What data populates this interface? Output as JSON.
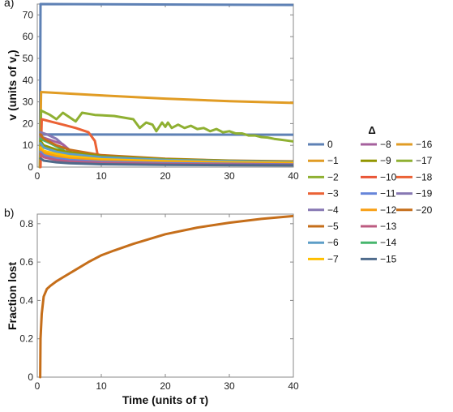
{
  "chart_data": [
    {
      "panel_label": "a)",
      "type": "line",
      "xlabel": "",
      "ylabel": "v (units of v",
      "ylabel_sub": "r",
      "ylabel_close": ")",
      "xlim": [
        0,
        40
      ],
      "ylim": [
        0,
        75
      ],
      "xticks": [
        0,
        10,
        20,
        30,
        40
      ],
      "yticks": [
        0,
        10,
        20,
        30,
        40,
        50,
        60,
        70
      ],
      "grid": false,
      "legend": {
        "title": "Δ",
        "placement": "right",
        "entries": [
          {
            "label": "0",
            "color": "#5e81b5"
          },
          {
            "label": "−1",
            "color": "#e19c24"
          },
          {
            "label": "−2",
            "color": "#8fb032"
          },
          {
            "label": "−3",
            "color": "#eb6235"
          },
          {
            "label": "−4",
            "color": "#8778b3"
          },
          {
            "label": "−5",
            "color": "#c56e1a"
          },
          {
            "label": "−6",
            "color": "#5d9ec7"
          },
          {
            "label": "−7",
            "color": "#ffbf00"
          },
          {
            "label": "−8",
            "color": "#a5609d"
          },
          {
            "label": "−9",
            "color": "#929600"
          },
          {
            "label": "−10",
            "color": "#e95536"
          },
          {
            "label": "−11",
            "color": "#6685d9"
          },
          {
            "label": "−12",
            "color": "#f89f13"
          },
          {
            "label": "−13",
            "color": "#bc5b80"
          },
          {
            "label": "−14",
            "color": "#47b66d"
          },
          {
            "label": "−15",
            "color": "#4f6b8c"
          },
          {
            "label": "−16",
            "color": "#e19c24"
          },
          {
            "label": "−17",
            "color": "#8fb032"
          },
          {
            "label": "−18",
            "color": "#eb6235"
          },
          {
            "label": "−19",
            "color": "#8778b3"
          },
          {
            "label": "−20",
            "color": "#c56e1a"
          }
        ]
      },
      "series": [
        {
          "color": "#5e81b5",
          "points": [
            [
              0.4,
              0
            ],
            [
              0.5,
              75
            ],
            [
              40,
              74.6
            ]
          ]
        },
        {
          "color": "#5e81b5",
          "points": [
            [
              0.4,
              0
            ],
            [
              0.55,
              15
            ],
            [
              40,
              14.9
            ]
          ]
        },
        {
          "color": "#e19c24",
          "points": [
            [
              0.4,
              0
            ],
            [
              0.6,
              34.5
            ],
            [
              10,
              33
            ],
            [
              20,
              31.5
            ],
            [
              30,
              30.3
            ],
            [
              40,
              29.5
            ]
          ]
        },
        {
          "color": "#8fb032",
          "points": [
            [
              0.4,
              0
            ],
            [
              0.6,
              26
            ],
            [
              2,
              24
            ],
            [
              3,
              22
            ],
            [
              4,
              25
            ],
            [
              5,
              23
            ],
            [
              6,
              21
            ],
            [
              7,
              25
            ],
            [
              9,
              24
            ],
            [
              12,
              23.5
            ],
            [
              15,
              22
            ],
            [
              16,
              18
            ],
            [
              17,
              20.5
            ],
            [
              18,
              19.5
            ],
            [
              18.6,
              16.5
            ],
            [
              19.5,
              20.5
            ],
            [
              20,
              18.5
            ],
            [
              20.4,
              20.5
            ],
            [
              21,
              18
            ],
            [
              22,
              19.5
            ],
            [
              23,
              18
            ],
            [
              24,
              19
            ],
            [
              25,
              17.5
            ],
            [
              26,
              18
            ],
            [
              27,
              16.5
            ],
            [
              28,
              17.5
            ],
            [
              29,
              16
            ],
            [
              30,
              16.5
            ],
            [
              31,
              15.5
            ],
            [
              32,
              15.5
            ],
            [
              33,
              14.5
            ],
            [
              34,
              14.5
            ],
            [
              35,
              13.8
            ],
            [
              36,
              13.6
            ],
            [
              37,
              13
            ],
            [
              38,
              12.6
            ],
            [
              39,
              12.2
            ],
            [
              40,
              11.8
            ]
          ]
        },
        {
          "color": "#eb6235",
          "points": [
            [
              0.5,
              0
            ],
            [
              0.7,
              22
            ],
            [
              2,
              21
            ],
            [
              4,
              19.5
            ],
            [
              6,
              18
            ],
            [
              8,
              16
            ],
            [
              9,
              12
            ],
            [
              9.4,
              6
            ],
            [
              9.7,
              2.5
            ],
            [
              12,
              2.2
            ],
            [
              40,
              1.8
            ]
          ]
        },
        {
          "color": "#8778b3",
          "points": [
            [
              0.5,
              16
            ],
            [
              1.5,
              15
            ],
            [
              3,
              13
            ],
            [
              4.5,
              9
            ],
            [
              5.2,
              3
            ],
            [
              6,
              2.6
            ],
            [
              40,
              2
            ]
          ]
        },
        {
          "color": "#a5609d",
          "points": [
            [
              0.5,
              14
            ],
            [
              2,
              12.5
            ],
            [
              4,
              10.5
            ],
            [
              5,
              8
            ],
            [
              6,
              3
            ],
            [
              7,
              2.4
            ],
            [
              40,
              1.9
            ]
          ]
        },
        {
          "color": "#47b66d",
          "points": [
            [
              0.5,
              13
            ],
            [
              2,
              11
            ],
            [
              4,
              8
            ],
            [
              5.8,
              2.5
            ],
            [
              7,
              2.2
            ],
            [
              40,
              1.6
            ]
          ]
        },
        {
          "color": "#c56e1a",
          "points": [
            [
              0.5,
              15
            ],
            [
              1,
              13
            ],
            [
              3,
              10
            ],
            [
              5,
              8
            ],
            [
              10,
              5.5
            ],
            [
              20,
              3.8
            ],
            [
              30,
              3
            ],
            [
              40,
              2.6
            ]
          ]
        },
        {
          "color": "#929600",
          "points": [
            [
              0.5,
              12
            ],
            [
              1,
              10
            ],
            [
              3,
              8
            ],
            [
              5,
              6.8
            ],
            [
              10,
              5
            ],
            [
              20,
              3.6
            ],
            [
              30,
              2.9
            ],
            [
              40,
              2.4
            ]
          ]
        },
        {
          "color": "#5d9ec7",
          "points": [
            [
              0.5,
              11
            ],
            [
              1,
              9
            ],
            [
              3,
              7
            ],
            [
              5,
              6
            ],
            [
              10,
              4.5
            ],
            [
              20,
              3.3
            ],
            [
              30,
              2.7
            ],
            [
              40,
              2.2
            ]
          ]
        },
        {
          "color": "#ffbf00",
          "points": [
            [
              0.5,
              9
            ],
            [
              1,
              7.5
            ],
            [
              3,
              6
            ],
            [
              5,
              5
            ],
            [
              10,
              3.6
            ],
            [
              20,
              2.7
            ],
            [
              30,
              2.2
            ],
            [
              40,
              1.9
            ]
          ]
        },
        {
          "color": "#f89f13",
          "points": [
            [
              0.5,
              8
            ],
            [
              1,
              6.5
            ],
            [
              3,
              5
            ],
            [
              5,
              4
            ],
            [
              10,
              3
            ],
            [
              20,
              2.2
            ],
            [
              30,
              1.8
            ],
            [
              40,
              1.5
            ]
          ]
        },
        {
          "color": "#6685d9",
          "points": [
            [
              0.5,
              7
            ],
            [
              1,
              5.5
            ],
            [
              3,
              4
            ],
            [
              5,
              3.3
            ],
            [
              10,
              2.4
            ],
            [
              20,
              1.8
            ],
            [
              30,
              1.5
            ],
            [
              40,
              1.2
            ]
          ]
        },
        {
          "color": "#bc5b80",
          "points": [
            [
              0.5,
              6
            ],
            [
              1,
              4.5
            ],
            [
              3,
              3.2
            ],
            [
              5,
              2.6
            ],
            [
              10,
              1.9
            ],
            [
              20,
              1.4
            ],
            [
              30,
              1.2
            ],
            [
              40,
              1
            ]
          ]
        },
        {
          "color": "#4f6b8c",
          "points": [
            [
              0.5,
              4
            ],
            [
              1,
              3
            ],
            [
              3,
              2.2
            ],
            [
              5,
              1.8
            ],
            [
              10,
              1.3
            ],
            [
              20,
              1
            ],
            [
              30,
              0.9
            ],
            [
              40,
              0.8
            ]
          ]
        }
      ]
    },
    {
      "panel_label": "b)",
      "type": "line",
      "xlabel": "Time (units of τ)",
      "ylabel": "Fraction lost",
      "xlim": [
        0,
        40
      ],
      "ylim": [
        0,
        0.85
      ],
      "xticks": [
        0,
        10,
        20,
        30,
        40
      ],
      "yticks": [
        0,
        0.2,
        0.4,
        0.6,
        0.8
      ],
      "grid": false,
      "series": [
        {
          "color": "#c56e1a",
          "points": [
            [
              0.45,
              0
            ],
            [
              0.5,
              0.2
            ],
            [
              0.7,
              0.33
            ],
            [
              1,
              0.42
            ],
            [
              1.5,
              0.46
            ],
            [
              2,
              0.475
            ],
            [
              3,
              0.5
            ],
            [
              4,
              0.52
            ],
            [
              6,
              0.56
            ],
            [
              8,
              0.6
            ],
            [
              10,
              0.635
            ],
            [
              12,
              0.66
            ],
            [
              15,
              0.695
            ],
            [
              18,
              0.725
            ],
            [
              20,
              0.745
            ],
            [
              25,
              0.78
            ],
            [
              30,
              0.805
            ],
            [
              35,
              0.825
            ],
            [
              40,
              0.84
            ]
          ]
        }
      ]
    }
  ]
}
